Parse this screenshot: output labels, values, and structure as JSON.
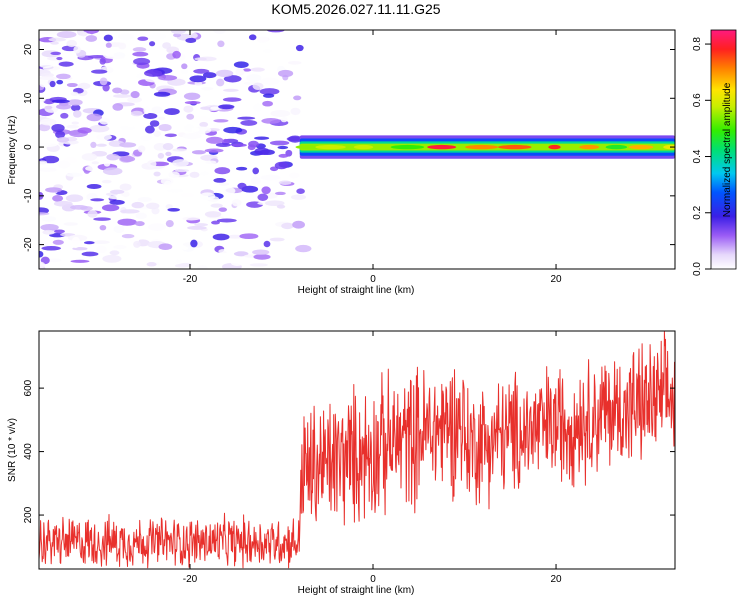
{
  "title": "KOM5.2026.027.11.11.G25",
  "chart_data": [
    {
      "type": "heatmap",
      "name": "spectrogram",
      "xlabel": "Height of straight line (km)",
      "ylabel": "Frequency (Hz)",
      "xlim": [
        -36.5,
        33
      ],
      "ylim": [
        -25,
        24
      ],
      "xticks": [
        -20,
        0,
        20
      ],
      "xtick_labels": [
        "-20",
        "0",
        "20"
      ],
      "yticks": [
        -20,
        -10,
        0,
        10,
        20
      ],
      "ytick_labels": [
        "-20",
        "-10",
        "0",
        "10",
        "20"
      ],
      "colorbar": {
        "label": "Normalized spectral amplitude",
        "range": [
          0.0,
          0.85
        ],
        "ticks": [
          0.0,
          0.2,
          0.4,
          0.6,
          0.8
        ],
        "tick_labels": [
          "0.0",
          "0.2",
          "0.4",
          "0.6",
          "0.8"
        ]
      },
      "description_regions": {
        "noise_region_x": [
          -36.5,
          -7
        ],
        "noise_amplitude_max": 0.2,
        "carrier_start_x": -8,
        "carrier_frequency": 0,
        "carrier_amplitude_max": 0.85
      }
    },
    {
      "type": "line",
      "name": "snr",
      "xlabel": "Height of straight line (km)",
      "ylabel": "SNR (10 * v/v)",
      "xlim": [
        -36.5,
        33
      ],
      "ylim": [
        30,
        780
      ],
      "xticks": [
        -20,
        0,
        20
      ],
      "xtick_labels": [
        "-20",
        "0",
        "20"
      ],
      "yticks": [
        200,
        400,
        600
      ],
      "ytick_labels": [
        "200",
        "400",
        "600"
      ],
      "color": "#e8302c",
      "segments": [
        {
          "x_start": -36.5,
          "x_end": -8,
          "mean": 115,
          "spread": 95
        },
        {
          "x_start": -8,
          "x_end": 10,
          "mean": 430,
          "spread": 260
        },
        {
          "x_start": 10,
          "x_end": 33,
          "mean": 500,
          "spread": 230
        }
      ]
    }
  ]
}
